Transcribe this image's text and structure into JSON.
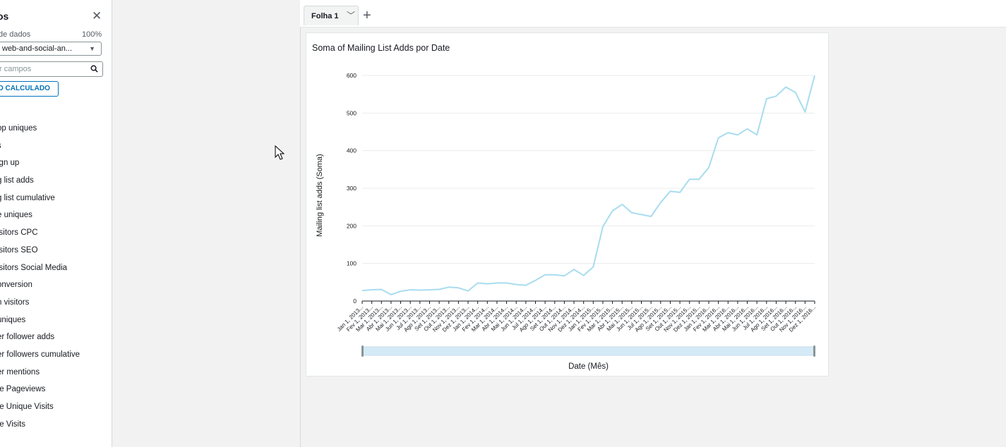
{
  "sidebar": {
    "title": "os",
    "close_icon": "close-icon",
    "dataset_label": "de dados",
    "dataset_percent": "100%",
    "dataset_value": "web-and-social-an...",
    "search_placeholder": "r campos",
    "calc_button": "O CALCULADO",
    "fields": [
      "op uniques",
      "s",
      "ign up",
      "g list adds",
      "g list cumulative",
      "e uniques",
      "isitors CPC",
      "isitors SEO",
      "isitors Social Media",
      "onversion",
      "n visitors",
      "uniques",
      "er follower adds",
      "er followers cumulative",
      "er mentions",
      "te Pageviews",
      "te Unique Visits",
      "te Visits"
    ]
  },
  "sheet": {
    "tab_label": "Folha 1",
    "add_icon": "plus-icon"
  },
  "visual": {
    "title": "Soma of Mailing List Adds por Date"
  },
  "chart_data": {
    "type": "line",
    "title": "Soma of Mailing List Adds por Date",
    "xlabel": "Date (Mês)",
    "ylabel": "Mailing list adds (Soma)",
    "ylim": [
      0,
      600
    ],
    "yticks": [
      0,
      100,
      200,
      300,
      400,
      500,
      600
    ],
    "grid": true,
    "line_color": "#a8dcef",
    "categories": [
      "Jan 1, 2013...",
      "Fev 1, 2013...",
      "Mar 1, 2013...",
      "Abr 1, 2013...",
      "Mai 1, 2013...",
      "Jun 1, 2013...",
      "Jul 1, 2013...",
      "Ago 1, 2013...",
      "Set 1, 2013...",
      "Out 1, 2013...",
      "Nov 1, 2013...",
      "Dez 1, 2013...",
      "Jan 1, 2014...",
      "Fev 1, 2014...",
      "Mar 1, 2014...",
      "Abr 1, 2014...",
      "Mai 1, 2014...",
      "Jun 1, 2014...",
      "Jul 1, 2014...",
      "Ago 1, 2014...",
      "Set 1, 2014...",
      "Out 1, 2014...",
      "Nov 1, 2014...",
      "Dez 1, 2014...",
      "Jan 1, 2015...",
      "Fev 1, 2015...",
      "Mar 1, 2015...",
      "Abr 1, 2015...",
      "Mai 1, 2015...",
      "Jun 1, 2015...",
      "Jul 1, 2015...",
      "Ago 1, 2015...",
      "Set 1, 2015...",
      "Out 1, 2015...",
      "Nov 1, 2015...",
      "Dez 1, 2015...",
      "Jan 1, 2016...",
      "Fev 1, 2016...",
      "Mar 1, 2016...",
      "Abr 1, 2016...",
      "Mai 1, 2016...",
      "Jun 1, 2016...",
      "Jul 1, 2016...",
      "Ago 1, 2016...",
      "Set 1, 2016...",
      "Out 1, 2016...",
      "Nov 1, 2016...",
      "Dez 1, 2016..."
    ],
    "values": [
      28,
      30,
      31,
      17,
      26,
      30,
      29,
      30,
      31,
      37,
      35,
      27,
      48,
      46,
      48,
      48,
      44,
      42,
      55,
      70,
      70,
      67,
      84,
      68,
      91,
      198,
      240,
      257,
      235,
      230,
      225,
      262,
      292,
      289,
      324,
      324,
      355,
      434,
      448,
      442,
      458,
      442,
      538,
      545,
      569,
      555,
      503,
      600
    ]
  }
}
